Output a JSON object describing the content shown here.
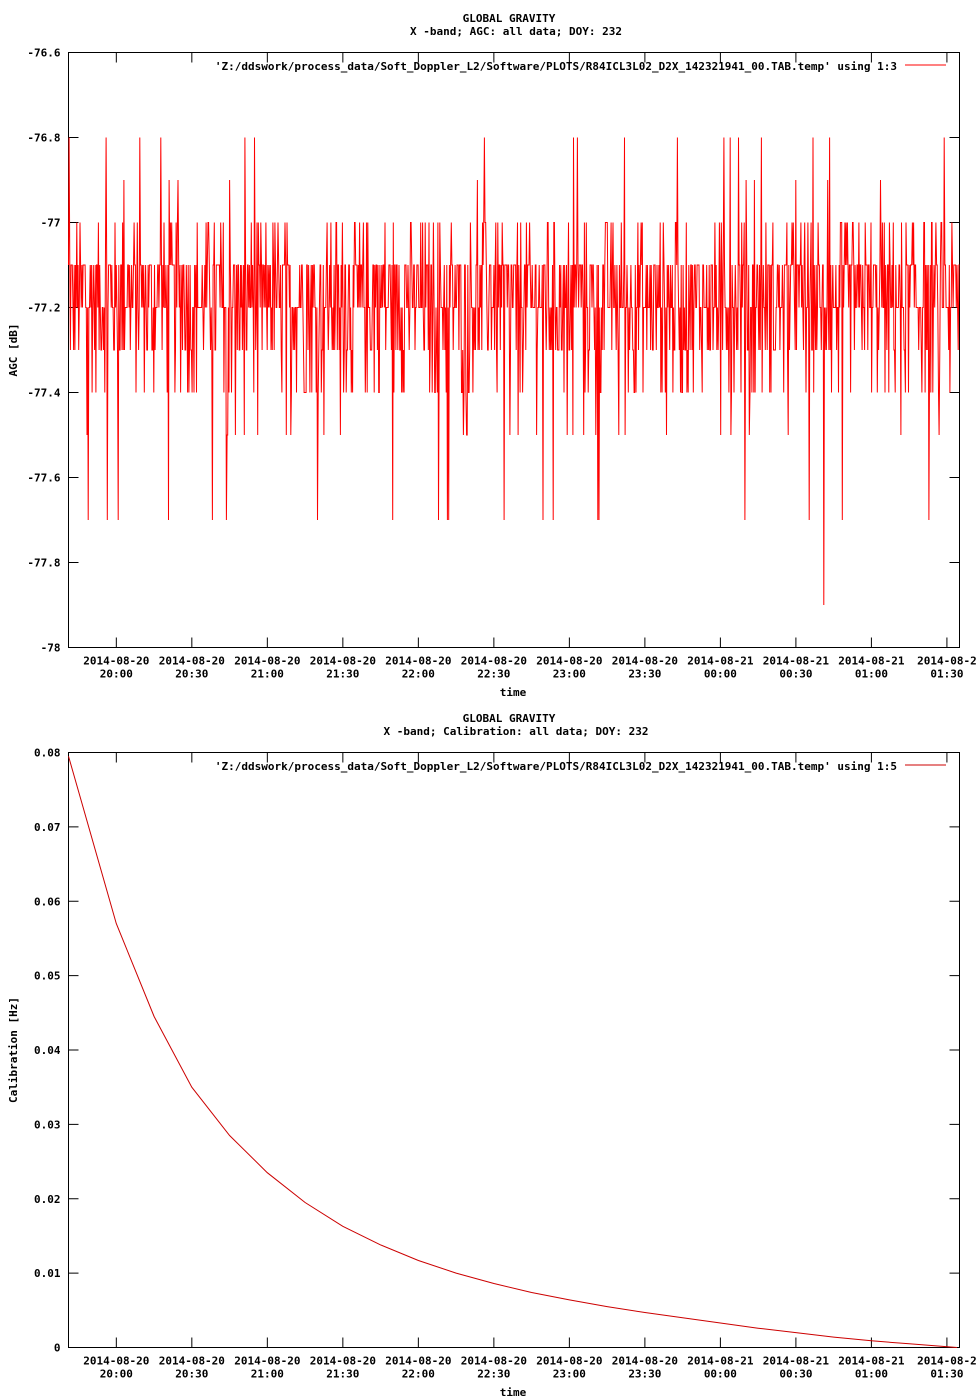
{
  "chart_data": [
    {
      "type": "line",
      "title": "GLOBAL GRAVITY",
      "subtitle": "X -band; AGC: all data; DOY: 232",
      "xlabel": "time",
      "ylabel": "AGC [dB]",
      "ylim": [
        -78,
        -76.6
      ],
      "yticks": [
        "-76.6",
        "-76.8",
        "-77",
        "-77.2",
        "-77.4",
        "-77.6",
        "-77.8",
        "-78"
      ],
      "x_range": [
        "2014-08-20 19:41",
        "2014-08-21 01:35"
      ],
      "xtick_dates": [
        "2014-08-20",
        "2014-08-20",
        "2014-08-20",
        "2014-08-20",
        "2014-08-20",
        "2014-08-20",
        "2014-08-20",
        "2014-08-20",
        "2014-08-21",
        "2014-08-21",
        "2014-08-21",
        "2014-08-2"
      ],
      "xtick_times": [
        "20:00",
        "20:30",
        "21:00",
        "21:30",
        "22:00",
        "22:30",
        "23:00",
        "23:30",
        "00:00",
        "00:30",
        "01:00",
        "01:30"
      ],
      "legend_position": "top-right",
      "color": "#ff0000",
      "series": [
        {
          "name": "'Z:/ddswork/process_data/Soft_Doppler_L2/Software/PLOTS/R84ICL3L02_D2X_142321941_00.TAB.temp' using 1:3",
          "description_of_values": "noisy AGC, mostly between -77.5 and -76.9 dB, mean about -77.2 dB; spikes reach -76.8 dB, dips reach -77.7 dB, one dip to -77.9 dB near 00:41",
          "mean": -77.2,
          "typical_min": -77.5,
          "typical_max": -76.9,
          "spike_max": -76.8,
          "dip_min": -77.9
        }
      ]
    },
    {
      "type": "line",
      "title": "GLOBAL GRAVITY",
      "subtitle": "X -band; Calibration: all data; DOY: 232",
      "xlabel": "time",
      "ylabel": "Calibration [Hz]",
      "ylim": [
        0,
        0.08
      ],
      "yticks": [
        "0.08",
        "0.07",
        "0.06",
        "0.05",
        "0.04",
        "0.03",
        "0.02",
        "0.01",
        "0"
      ],
      "x_range": [
        "2014-08-20 19:41",
        "2014-08-21 01:35"
      ],
      "xtick_dates": [
        "2014-08-20",
        "2014-08-20",
        "2014-08-20",
        "2014-08-20",
        "2014-08-20",
        "2014-08-20",
        "2014-08-20",
        "2014-08-20",
        "2014-08-21",
        "2014-08-21",
        "2014-08-21",
        "2014-08-2"
      ],
      "xtick_times": [
        "20:00",
        "20:30",
        "21:00",
        "21:30",
        "22:00",
        "22:30",
        "23:00",
        "23:30",
        "00:00",
        "00:30",
        "01:00",
        "01:30"
      ],
      "legend_position": "top-right",
      "color": "#cc0000",
      "series": [
        {
          "name": "'Z:/ddswork/process_data/Soft_Doppler_L2/Software/PLOTS/R84ICL3L02_D2X_142321941_00.TAB.temp' using 1:5",
          "x": [
            "19:41",
            "20:00",
            "20:15",
            "20:30",
            "20:45",
            "21:00",
            "21:15",
            "21:30",
            "21:45",
            "22:00",
            "22:15",
            "22:30",
            "22:45",
            "23:00",
            "23:15",
            "23:30",
            "23:45",
            "00:00",
            "00:15",
            "00:30",
            "00:45",
            "01:00",
            "01:15",
            "01:34"
          ],
          "y": [
            0.0795,
            0.057,
            0.0445,
            0.035,
            0.0285,
            0.0235,
            0.0195,
            0.0163,
            0.0138,
            0.0117,
            0.01,
            0.0086,
            0.0074,
            0.0064,
            0.0055,
            0.0047,
            0.004,
            0.0033,
            0.0026,
            0.002,
            0.0014,
            0.0009,
            0.0005,
            0.0
          ]
        }
      ]
    }
  ]
}
